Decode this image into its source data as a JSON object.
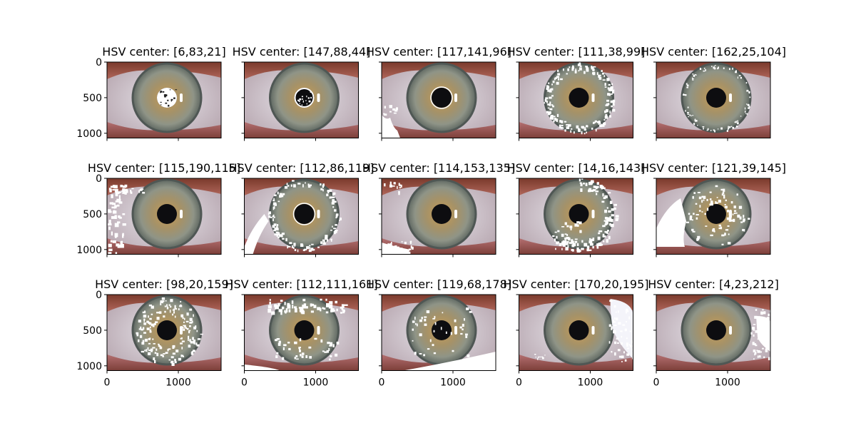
{
  "figure": {
    "type": "image-grid",
    "rows": 3,
    "cols": 5,
    "xlim": [
      0,
      1600
    ],
    "ylim": [
      1067,
      0
    ],
    "xticks": [
      0,
      1000
    ],
    "yticks": [
      0,
      500,
      1000
    ],
    "subplots": [
      {
        "title": "HSV center: [6,83,21]",
        "mask": "pupil-full"
      },
      {
        "title": "HSV center: [147,88,44]",
        "mask": "pupil-ring"
      },
      {
        "title": "HSV center: [117,141,96]",
        "mask": "corner-bottom-left"
      },
      {
        "title": "HSV center: [111,38,99]",
        "mask": "limbus-ring"
      },
      {
        "title": "HSV center: [162,25,104]",
        "mask": "limbus-thin"
      },
      {
        "title": "HSV center: [115,190,115]",
        "mask": "left-edge"
      },
      {
        "title": "HSV center: [112,86,119]",
        "mask": "left-sclera-ring"
      },
      {
        "title": "HSV center: [114,153,135]",
        "mask": "bottom-left-skin"
      },
      {
        "title": "HSV center: [14,16,143]",
        "mask": "right-limbus"
      },
      {
        "title": "HSV center: [121,39,145]",
        "mask": "left-sclera-big"
      },
      {
        "title": "HSV center: [98,20,159]",
        "mask": "iris-patches"
      },
      {
        "title": "HSV center: [112,111,161]",
        "mask": "upper-lid"
      },
      {
        "title": "HSV center: [119,68,178]",
        "mask": "lower-lid"
      },
      {
        "title": "HSV center: [170,20,195]",
        "mask": "right-sclera"
      },
      {
        "title": "HSV center: [4,23,212]",
        "mask": "right-sclera-far"
      }
    ]
  }
}
